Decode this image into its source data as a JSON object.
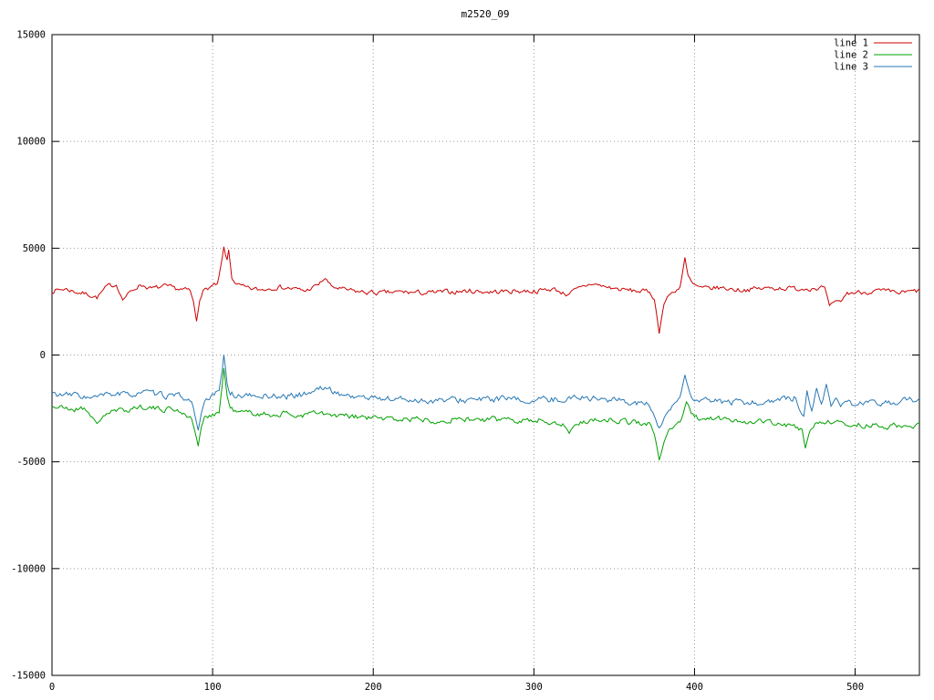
{
  "window": {
    "title": "m2520_09"
  },
  "chart_data": {
    "type": "line",
    "title": "m2520_09",
    "xlabel": "",
    "ylabel": "",
    "xlim": [
      0,
      540
    ],
    "ylim": [
      -15000,
      15000
    ],
    "x_ticks": [
      0,
      100,
      200,
      300,
      400,
      500
    ],
    "y_ticks": [
      -15000,
      -10000,
      -5000,
      0,
      5000,
      10000,
      15000
    ],
    "grid": true,
    "grid_color": "#9a9a9a",
    "border_color": "#000000",
    "background": "#ffffff",
    "legend_position": "top-right",
    "series": [
      {
        "name": "line 1",
        "color": "#cc0000",
        "noise": 110,
        "seed": 7,
        "keypoints": [
          [
            0,
            3000
          ],
          [
            8,
            3100
          ],
          [
            15,
            2950
          ],
          [
            22,
            2850
          ],
          [
            28,
            2700
          ],
          [
            34,
            3200
          ],
          [
            40,
            3300
          ],
          [
            44,
            2600
          ],
          [
            48,
            2900
          ],
          [
            55,
            3300
          ],
          [
            62,
            3100
          ],
          [
            70,
            3200
          ],
          [
            78,
            3100
          ],
          [
            86,
            3000
          ],
          [
            88,
            2500
          ],
          [
            90,
            1600
          ],
          [
            92,
            2600
          ],
          [
            94,
            3000
          ],
          [
            99,
            3200
          ],
          [
            103,
            3300
          ],
          [
            105,
            4100
          ],
          [
            107,
            5000
          ],
          [
            109,
            4400
          ],
          [
            110,
            4900
          ],
          [
            112,
            3600
          ],
          [
            115,
            3300
          ],
          [
            122,
            3100
          ],
          [
            130,
            3050
          ],
          [
            140,
            3200
          ],
          [
            150,
            3100
          ],
          [
            158,
            3000
          ],
          [
            166,
            3300
          ],
          [
            170,
            3600
          ],
          [
            174,
            3200
          ],
          [
            182,
            3050
          ],
          [
            192,
            2950
          ],
          [
            205,
            2900
          ],
          [
            218,
            2950
          ],
          [
            232,
            2900
          ],
          [
            246,
            2950
          ],
          [
            260,
            3000
          ],
          [
            274,
            2950
          ],
          [
            288,
            3000
          ],
          [
            302,
            3000
          ],
          [
            312,
            3100
          ],
          [
            320,
            2850
          ],
          [
            328,
            3100
          ],
          [
            336,
            3350
          ],
          [
            344,
            3200
          ],
          [
            355,
            3050
          ],
          [
            365,
            3000
          ],
          [
            372,
            2950
          ],
          [
            375,
            2600
          ],
          [
            378,
            1100
          ],
          [
            381,
            2400
          ],
          [
            384,
            2800
          ],
          [
            388,
            3000
          ],
          [
            391,
            3200
          ],
          [
            394,
            4500
          ],
          [
            396,
            3700
          ],
          [
            399,
            3300
          ],
          [
            405,
            3100
          ],
          [
            415,
            3150
          ],
          [
            428,
            3050
          ],
          [
            440,
            3100
          ],
          [
            452,
            3150
          ],
          [
            464,
            3100
          ],
          [
            474,
            3150
          ],
          [
            481,
            3150
          ],
          [
            484,
            2300
          ],
          [
            487,
            2400
          ],
          [
            491,
            2500
          ],
          [
            495,
            2900
          ],
          [
            505,
            2950
          ],
          [
            515,
            3000
          ],
          [
            527,
            2900
          ],
          [
            540,
            3000
          ]
        ]
      },
      {
        "name": "line 2",
        "color": "#00a000",
        "noise": 130,
        "seed": 21,
        "keypoints": [
          [
            0,
            -2400
          ],
          [
            8,
            -2500
          ],
          [
            15,
            -2550
          ],
          [
            20,
            -2450
          ],
          [
            25,
            -2900
          ],
          [
            28,
            -3300
          ],
          [
            32,
            -2800
          ],
          [
            38,
            -2650
          ],
          [
            45,
            -2600
          ],
          [
            52,
            -2450
          ],
          [
            58,
            -2400
          ],
          [
            66,
            -2550
          ],
          [
            74,
            -2500
          ],
          [
            82,
            -2700
          ],
          [
            87,
            -3000
          ],
          [
            89,
            -3600
          ],
          [
            91,
            -4200
          ],
          [
            93,
            -3400
          ],
          [
            95,
            -2950
          ],
          [
            100,
            -2750
          ],
          [
            104,
            -2700
          ],
          [
            106,
            -1400
          ],
          [
            107,
            -600
          ],
          [
            109,
            -1900
          ],
          [
            111,
            -2500
          ],
          [
            116,
            -2700
          ],
          [
            124,
            -2700
          ],
          [
            134,
            -2800
          ],
          [
            144,
            -2750
          ],
          [
            154,
            -2850
          ],
          [
            164,
            -2700
          ],
          [
            174,
            -2850
          ],
          [
            186,
            -2900
          ],
          [
            200,
            -2950
          ],
          [
            214,
            -3000
          ],
          [
            228,
            -3000
          ],
          [
            242,
            -3050
          ],
          [
            256,
            -3000
          ],
          [
            270,
            -3050
          ],
          [
            284,
            -3000
          ],
          [
            298,
            -3050
          ],
          [
            310,
            -3100
          ],
          [
            318,
            -3250
          ],
          [
            322,
            -3600
          ],
          [
            327,
            -3200
          ],
          [
            335,
            -3050
          ],
          [
            345,
            -3000
          ],
          [
            355,
            -3100
          ],
          [
            365,
            -3150
          ],
          [
            372,
            -3250
          ],
          [
            375,
            -3700
          ],
          [
            378,
            -4900
          ],
          [
            381,
            -4100
          ],
          [
            384,
            -3500
          ],
          [
            388,
            -3300
          ],
          [
            392,
            -3000
          ],
          [
            395,
            -2200
          ],
          [
            398,
            -2700
          ],
          [
            403,
            -3000
          ],
          [
            412,
            -3000
          ],
          [
            424,
            -3050
          ],
          [
            436,
            -3100
          ],
          [
            448,
            -3150
          ],
          [
            458,
            -3300
          ],
          [
            463,
            -3400
          ],
          [
            467,
            -3500
          ],
          [
            469,
            -4400
          ],
          [
            472,
            -3500
          ],
          [
            476,
            -3150
          ],
          [
            482,
            -3100
          ],
          [
            490,
            -3200
          ],
          [
            498,
            -3250
          ],
          [
            508,
            -3300
          ],
          [
            520,
            -3350
          ],
          [
            530,
            -3300
          ],
          [
            540,
            -3300
          ]
        ]
      },
      {
        "name": "line 3",
        "color": "#2878b4",
        "noise": 140,
        "seed": 33,
        "keypoints": [
          [
            0,
            -1800
          ],
          [
            8,
            -1900
          ],
          [
            16,
            -1850
          ],
          [
            24,
            -2050
          ],
          [
            32,
            -1900
          ],
          [
            40,
            -1800
          ],
          [
            48,
            -1900
          ],
          [
            56,
            -1700
          ],
          [
            64,
            -1850
          ],
          [
            72,
            -1900
          ],
          [
            80,
            -1950
          ],
          [
            87,
            -2200
          ],
          [
            89,
            -2800
          ],
          [
            91,
            -3500
          ],
          [
            93,
            -2700
          ],
          [
            95,
            -2250
          ],
          [
            100,
            -1900
          ],
          [
            104,
            -1700
          ],
          [
            106,
            -700
          ],
          [
            107,
            100
          ],
          [
            109,
            -1300
          ],
          [
            111,
            -1900
          ],
          [
            118,
            -1900
          ],
          [
            126,
            -1950
          ],
          [
            136,
            -1900
          ],
          [
            146,
            -1950
          ],
          [
            156,
            -1850
          ],
          [
            164,
            -1650
          ],
          [
            170,
            -1500
          ],
          [
            176,
            -1750
          ],
          [
            184,
            -1900
          ],
          [
            196,
            -2000
          ],
          [
            210,
            -2050
          ],
          [
            224,
            -2100
          ],
          [
            238,
            -2150
          ],
          [
            252,
            -2100
          ],
          [
            266,
            -2100
          ],
          [
            280,
            -2050
          ],
          [
            294,
            -2150
          ],
          [
            308,
            -2100
          ],
          [
            320,
            -2050
          ],
          [
            330,
            -1950
          ],
          [
            340,
            -2050
          ],
          [
            350,
            -2100
          ],
          [
            360,
            -2200
          ],
          [
            368,
            -2300
          ],
          [
            372,
            -2350
          ],
          [
            375,
            -2900
          ],
          [
            378,
            -3600
          ],
          [
            381,
            -3000
          ],
          [
            384,
            -2600
          ],
          [
            388,
            -2300
          ],
          [
            391,
            -2000
          ],
          [
            394,
            -900
          ],
          [
            397,
            -1800
          ],
          [
            400,
            -2200
          ],
          [
            408,
            -2150
          ],
          [
            420,
            -2200
          ],
          [
            432,
            -2250
          ],
          [
            444,
            -2200
          ],
          [
            452,
            -2150
          ],
          [
            458,
            -2050
          ],
          [
            463,
            -2000
          ],
          [
            466,
            -2700
          ],
          [
            468,
            -2900
          ],
          [
            470,
            -1700
          ],
          [
            473,
            -2700
          ],
          [
            476,
            -1500
          ],
          [
            479,
            -2400
          ],
          [
            482,
            -1400
          ],
          [
            485,
            -2300
          ],
          [
            488,
            -2000
          ],
          [
            491,
            -2400
          ],
          [
            495,
            -2300
          ],
          [
            503,
            -2250
          ],
          [
            513,
            -2300
          ],
          [
            523,
            -2200
          ],
          [
            532,
            -2150
          ],
          [
            540,
            -2100
          ]
        ]
      }
    ]
  }
}
